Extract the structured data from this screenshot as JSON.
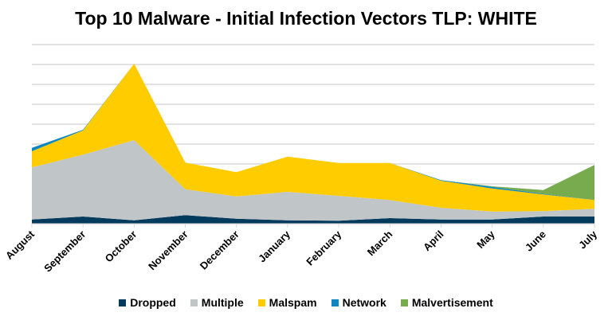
{
  "chart_data": {
    "type": "area",
    "stacked": true,
    "title": "Top 10 Malware - Initial Infection Vectors TLP: WHITE",
    "xlabel": "",
    "ylabel": "",
    "categories": [
      "August",
      "September",
      "October",
      "November",
      "December",
      "January",
      "February",
      "March",
      "April",
      "May",
      "June",
      "July"
    ],
    "ylim": [
      0,
      90
    ],
    "grid": true,
    "y_tick_labels_shown": false,
    "legend_position": "bottom",
    "series": [
      {
        "name": "Dropped",
        "color": "#003a5c",
        "values": [
          2.1,
          3.6,
          1.7,
          4.3,
          2.5,
          1.7,
          1.5,
          2.8,
          2.1,
          2.1,
          3.6,
          3.6
        ]
      },
      {
        "name": "Multiple",
        "color": "#c0c5c8",
        "values": [
          26.2,
          31.1,
          40.3,
          13.0,
          11.2,
          14.3,
          12.5,
          9.1,
          5.9,
          4.0,
          2.7,
          3.9
        ]
      },
      {
        "name": "Malspam",
        "color": "#ffcc00",
        "values": [
          8.1,
          12.2,
          38.4,
          13.4,
          12.2,
          17.7,
          16.5,
          18.6,
          13.6,
          11.6,
          8.4,
          4.4
        ]
      },
      {
        "name": "Network",
        "color": "#0e86c1",
        "values": [
          1.7,
          0.3,
          0,
          0,
          0,
          0,
          0,
          0,
          0.3,
          0.8,
          0.3,
          0
        ]
      },
      {
        "name": "Malvertisement",
        "color": "#77ab4e",
        "values": [
          0,
          0,
          0,
          0,
          0,
          0,
          0,
          0,
          0,
          0.3,
          1.9,
          17.6
        ]
      }
    ]
  }
}
